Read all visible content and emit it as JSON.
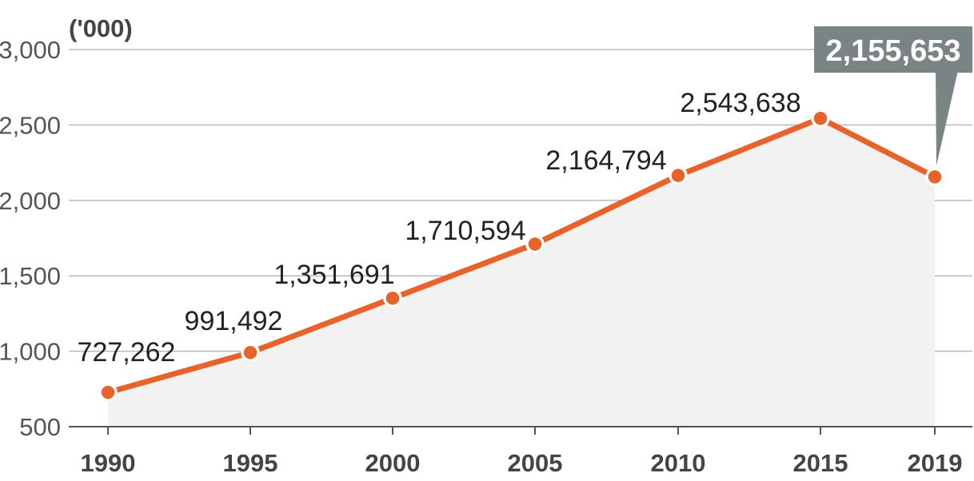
{
  "colors": {
    "line": "#e8632b",
    "area": "#f2f2f2",
    "grid": "#b9b9b9",
    "axis": "#555555",
    "callout_bg": "#7b8485",
    "callout_text": "#ffffff"
  },
  "chart_data": {
    "type": "line",
    "unit_label": "('000)",
    "x": [
      "1990",
      "1995",
      "2000",
      "2005",
      "2010",
      "2015",
      "2019"
    ],
    "y_thousands": [
      727.262,
      991.492,
      1351.691,
      1710.594,
      2164.794,
      2543.638,
      2155.653
    ],
    "data_labels": [
      "727,262",
      "991,492",
      "1,351,691",
      "1,710,594",
      "2,164,794",
      "2,543,638",
      "2,155,653"
    ],
    "highlight_index": 6,
    "yticks": [
      500,
      1000,
      1500,
      2000,
      2500,
      3000
    ],
    "ytick_labels": [
      "500",
      "1,000",
      "1,500",
      "2,000",
      "2,500",
      "3,000"
    ],
    "ylim": [
      500,
      3000
    ],
    "grid": true,
    "area_fill": true,
    "title": "",
    "xlabel": "",
    "ylabel": ""
  }
}
